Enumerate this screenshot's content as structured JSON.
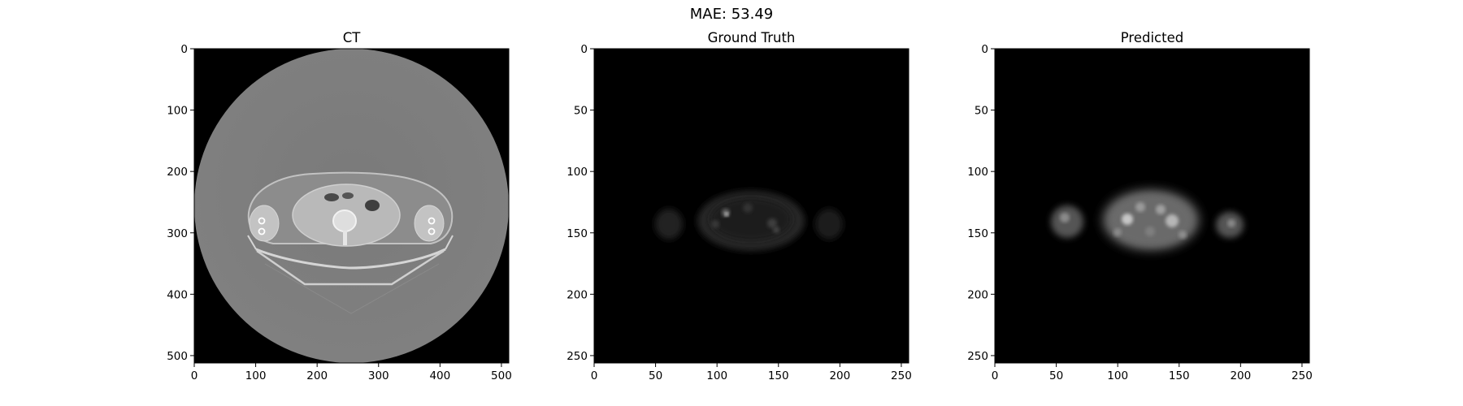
{
  "suptitle": "MAE: 53.49",
  "chart_data": [
    {
      "type": "heatmap",
      "title": "CT",
      "colormap": "gray",
      "image_size": [
        512,
        512
      ],
      "xlim": [
        0,
        512
      ],
      "ylim": [
        512,
        0
      ],
      "xticks": [
        0,
        100,
        200,
        300,
        400,
        500
      ],
      "yticks": [
        0,
        100,
        200,
        300,
        400,
        500
      ]
    },
    {
      "type": "heatmap",
      "title": "Ground Truth",
      "colormap": "gray",
      "image_size": [
        256,
        256
      ],
      "xlim": [
        0,
        256
      ],
      "ylim": [
        256,
        0
      ],
      "xticks": [
        0,
        50,
        100,
        150,
        200,
        250
      ],
      "yticks": [
        0,
        50,
        100,
        150,
        200,
        250
      ]
    },
    {
      "type": "heatmap",
      "title": "Predicted",
      "colormap": "gray",
      "image_size": [
        256,
        256
      ],
      "xlim": [
        0,
        256
      ],
      "ylim": [
        256,
        0
      ],
      "xticks": [
        0,
        50,
        100,
        150,
        200,
        250
      ],
      "yticks": [
        0,
        50,
        100,
        150,
        200,
        250
      ]
    }
  ]
}
